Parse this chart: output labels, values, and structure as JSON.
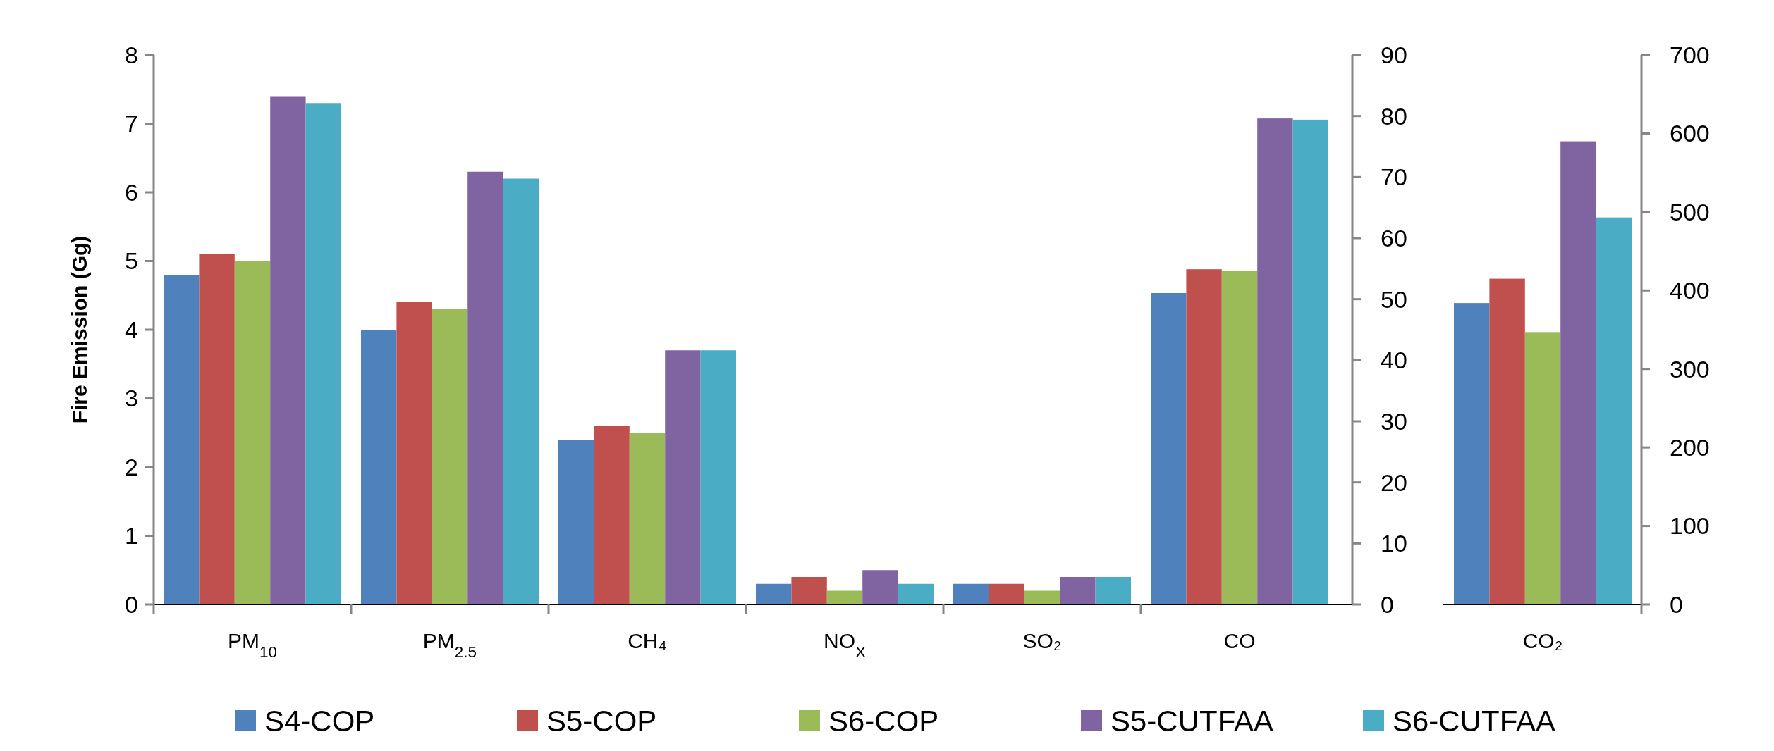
{
  "chart_data": {
    "type": "bar",
    "ylabel": "Fire Emission (Gg)",
    "categories": [
      "PM$_{10}$",
      "PM$_{2.5}$",
      "CH₄",
      "NO$_{X}$",
      "SO₂",
      "CO",
      "CO₂"
    ],
    "series": [
      {
        "name": "S4-COP",
        "color": "#4f81bd",
        "values": [
          4.8,
          4.0,
          2.4,
          0.3,
          0.3,
          null,
          null
        ]
      },
      {
        "name": "S5-COP",
        "color": "#c0504d",
        "values": [
          5.1,
          4.4,
          2.6,
          0.4,
          0.3,
          null,
          null
        ]
      },
      {
        "name": "S6-COP",
        "color": "#9bbb59",
        "values": [
          5.0,
          4.3,
          2.5,
          0.2,
          0.2,
          null,
          null
        ]
      },
      {
        "name": "S5-CUTFAA",
        "color": "#8064a2",
        "values": [
          7.4,
          6.3,
          3.7,
          0.5,
          0.4,
          null,
          null
        ]
      },
      {
        "name": "S6-CUTFAA",
        "color": "#4bacc6",
        "values": [
          7.3,
          6.2,
          3.7,
          0.3,
          0.4,
          null,
          null
        ]
      },
      {
        "color": "#4f81bd",
        "axis": "y2",
        "values": [
          null,
          null,
          null,
          null,
          null,
          51,
          null
        ]
      },
      {
        "color": "#c0504d",
        "axis": "y2",
        "values": [
          null,
          null,
          null,
          null,
          null,
          54.9,
          null
        ]
      },
      {
        "color": "#9bbb59",
        "axis": "y2",
        "values": [
          null,
          null,
          null,
          null,
          null,
          54.7,
          null
        ]
      },
      {
        "color": "#8064a2",
        "axis": "y2",
        "values": [
          null,
          null,
          null,
          null,
          null,
          79.6,
          null
        ]
      },
      {
        "color": "#4bacc6",
        "axis": "y2",
        "values": [
          null,
          null,
          null,
          null,
          null,
          79.4,
          null
        ]
      },
      {
        "color": "#4f81bd",
        "axis": "y3",
        "values": [
          null,
          null,
          null,
          null,
          null,
          null,
          384
        ]
      },
      {
        "color": "#c0504d",
        "axis": "y3",
        "values": [
          null,
          null,
          null,
          null,
          null,
          null,
          415
        ]
      },
      {
        "color": "#9bbb59",
        "axis": "y3",
        "values": [
          null,
          null,
          null,
          null,
          null,
          null,
          347
        ]
      },
      {
        "color": "#8064a2",
        "axis": "y3",
        "values": [
          null,
          null,
          null,
          null,
          null,
          null,
          590
        ]
      },
      {
        "color": "#4bacc6",
        "axis": "y3",
        "values": [
          null,
          null,
          null,
          null,
          null,
          null,
          493
        ]
      }
    ],
    "ylim": [
      0,
      8
    ],
    "yticks": [
      0,
      1,
      2,
      3,
      4,
      5,
      6,
      7,
      8
    ],
    "y2lim": [
      0,
      90
    ],
    "y2ticks": [
      0,
      10,
      20,
      30,
      40,
      50,
      60,
      70,
      80,
      90
    ],
    "y3lim": [
      0,
      700
    ],
    "y3ticks": [
      0,
      100,
      200,
      300,
      400,
      500,
      600,
      700
    ],
    "legend": "bottom"
  }
}
